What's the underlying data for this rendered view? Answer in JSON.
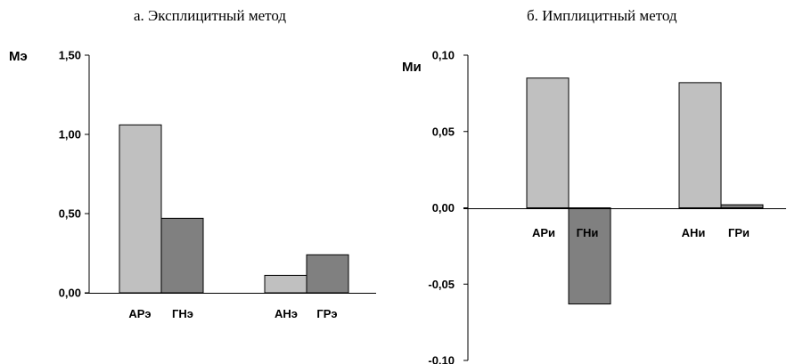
{
  "chart_data": [
    {
      "type": "bar",
      "title": "а. Эксплицитный метод",
      "ylabel": "Мэ",
      "ylim": [
        0,
        1.5
      ],
      "yticks": [
        "0,00",
        "0,50",
        "1,00",
        "1,50"
      ],
      "grid": false,
      "categories": [
        "АРэ",
        "ГНэ",
        "АНэ",
        "ГРэ"
      ],
      "values": [
        1.06,
        0.47,
        0.11,
        0.24
      ],
      "colors": [
        "#c0c0c0",
        "#808080",
        "#c0c0c0",
        "#808080"
      ]
    },
    {
      "type": "bar",
      "title": "б. Имплицитный метод",
      "ylabel": "Ми",
      "ylim": [
        -0.1,
        0.1
      ],
      "yticks": [
        "-0,10",
        "-0,05",
        "0,00",
        "0,05",
        "0,10"
      ],
      "grid": false,
      "categories": [
        "АРи",
        "ГНи",
        "АНи",
        "ГРи"
      ],
      "values": [
        0.085,
        -0.063,
        0.082,
        0.002
      ],
      "colors": [
        "#c0c0c0",
        "#808080",
        "#c0c0c0",
        "#808080"
      ]
    }
  ]
}
